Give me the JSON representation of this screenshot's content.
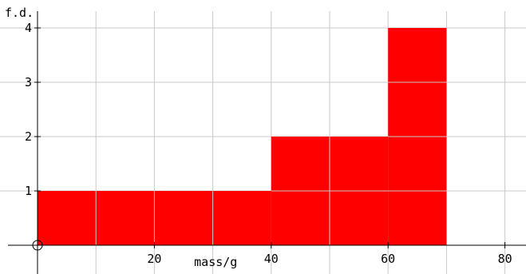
{
  "chart_data": {
    "type": "histogram",
    "title": "",
    "xlabel": "mass/g",
    "ylabel": "f.d.",
    "xlim": [
      0,
      84
    ],
    "ylim": [
      0,
      4.4
    ],
    "x_ticks": [
      20,
      40,
      60,
      80
    ],
    "y_ticks": [
      1,
      2,
      3,
      4
    ],
    "x_grid_step": 10,
    "y_grid_step": 1,
    "grid": true,
    "bar_color": "#ff0000",
    "bars": [
      {
        "x_start": 0,
        "x_end": 40,
        "frequency_density": 1
      },
      {
        "x_start": 40,
        "x_end": 60,
        "frequency_density": 2
      },
      {
        "x_start": 60,
        "x_end": 70,
        "frequency_density": 4
      }
    ]
  }
}
